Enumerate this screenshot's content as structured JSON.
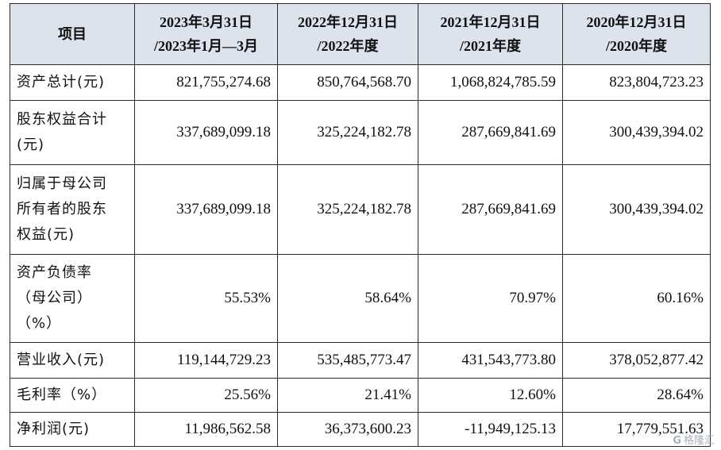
{
  "table": {
    "headers": [
      {
        "line1": "项目",
        "line2": ""
      },
      {
        "line1": "2023年3月31日",
        "line2": "/2023年1月—3月"
      },
      {
        "line1": "2022年12月31日",
        "line2": "/2022年度"
      },
      {
        "line1": "2021年12月31日",
        "line2": "/2021年度"
      },
      {
        "line1": "2020年12月31日",
        "line2": "/2020年度"
      }
    ],
    "rows": [
      {
        "label_lines": [
          "资产总计(元)"
        ],
        "values": [
          "821,755,274.68",
          "850,764,568.70",
          "1,068,824,785.59",
          "823,804,723.23"
        ]
      },
      {
        "label_lines": [
          "股东权益合计",
          "(元)"
        ],
        "values": [
          "337,689,099.18",
          "325,224,182.78",
          "287,669,841.69",
          "300,439,394.02"
        ]
      },
      {
        "label_lines": [
          "归属于母公司",
          "所有者的股东",
          "权益(元)"
        ],
        "values": [
          "337,689,099.18",
          "325,224,182.78",
          "287,669,841.69",
          "300,439,394.02"
        ]
      },
      {
        "label_lines": [
          "资产负债率",
          "（母公司）",
          "（%）"
        ],
        "values": [
          "55.53%",
          "58.64%",
          "70.97%",
          "60.16%"
        ]
      },
      {
        "label_lines": [
          "营业收入(元)"
        ],
        "values": [
          "119,144,729.23",
          "535,485,773.47",
          "431,543,773.80",
          "378,052,877.42"
        ]
      },
      {
        "label_lines": [
          "毛利率（%）"
        ],
        "values": [
          "25.56%",
          "21.41%",
          "12.60%",
          "28.64%"
        ]
      },
      {
        "label_lines": [
          "净利润(元)"
        ],
        "values": [
          "11,986,562.58",
          "36,373,600.23",
          "-11,949,125.13",
          "17,779,551.63"
        ]
      }
    ]
  },
  "watermark": {
    "glyph": "G",
    "text": "格隆汇"
  }
}
